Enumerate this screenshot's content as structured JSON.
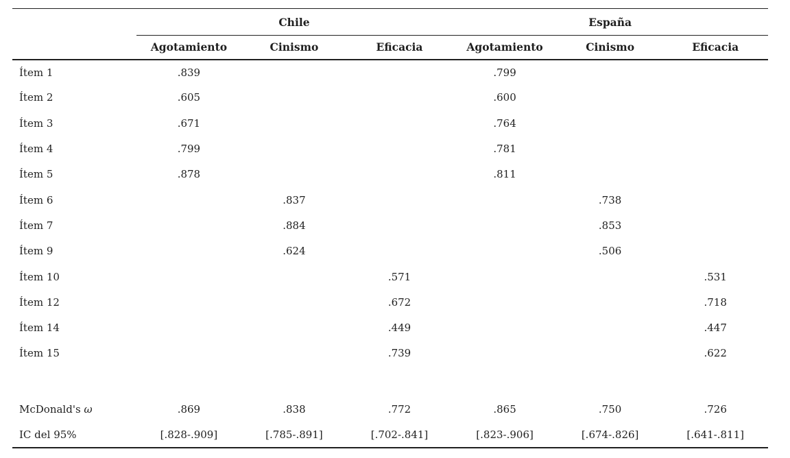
{
  "table": {
    "groups": [
      {
        "label": "Chile"
      },
      {
        "label": "España"
      }
    ],
    "subheaders": [
      "Agotamiento",
      "Cinismo",
      "Eficacia",
      "Agotamiento",
      "Cinismo",
      "Eficacia"
    ],
    "rows": [
      {
        "label": "Ítem 1",
        "values": [
          ".839",
          "",
          "",
          ".799",
          "",
          ""
        ]
      },
      {
        "label": "Ítem 2",
        "values": [
          ".605",
          "",
          "",
          ".600",
          "",
          ""
        ]
      },
      {
        "label": "Ítem 3",
        "values": [
          ".671",
          "",
          "",
          ".764",
          "",
          ""
        ]
      },
      {
        "label": "Ítem 4",
        "values": [
          ".799",
          "",
          "",
          ".781",
          "",
          ""
        ]
      },
      {
        "label": "Ítem 5",
        "values": [
          ".878",
          "",
          "",
          ".811",
          "",
          ""
        ]
      },
      {
        "label": "Ítem 6",
        "values": [
          "",
          ".837",
          "",
          "",
          ".738",
          ""
        ]
      },
      {
        "label": "Ítem 7",
        "values": [
          "",
          ".884",
          "",
          "",
          ".853",
          ""
        ]
      },
      {
        "label": "Ítem 9",
        "values": [
          "",
          ".624",
          "",
          "",
          ".506",
          ""
        ]
      },
      {
        "label": "Ítem 10",
        "values": [
          "",
          "",
          ".571",
          "",
          "",
          ".531"
        ]
      },
      {
        "label": "Ítem 12",
        "values": [
          "",
          "",
          ".672",
          "",
          "",
          ".718"
        ]
      },
      {
        "label": "Ítem 14",
        "values": [
          "",
          "",
          ".449",
          "",
          "",
          ".447"
        ]
      },
      {
        "label": "Ítem 15",
        "values": [
          "",
          "",
          ".739",
          "",
          "",
          ".622"
        ]
      }
    ],
    "summary_rows": [
      {
        "label": "McDonald's ",
        "symbol": "ω",
        "values": [
          ".869",
          ".838",
          ".772",
          ".865",
          ".750",
          ".726"
        ]
      },
      {
        "label": "IC del 95%",
        "symbol": "",
        "values": [
          "[.828-.909]",
          "[.785-.891]",
          "[.702-.841]",
          "[.823-.906]",
          "[.674-.826]",
          "[.641-.811]"
        ]
      }
    ]
  },
  "colors": {
    "text": "#1f1f1f",
    "rule": "#1f1f1f",
    "background": "#ffffff"
  }
}
